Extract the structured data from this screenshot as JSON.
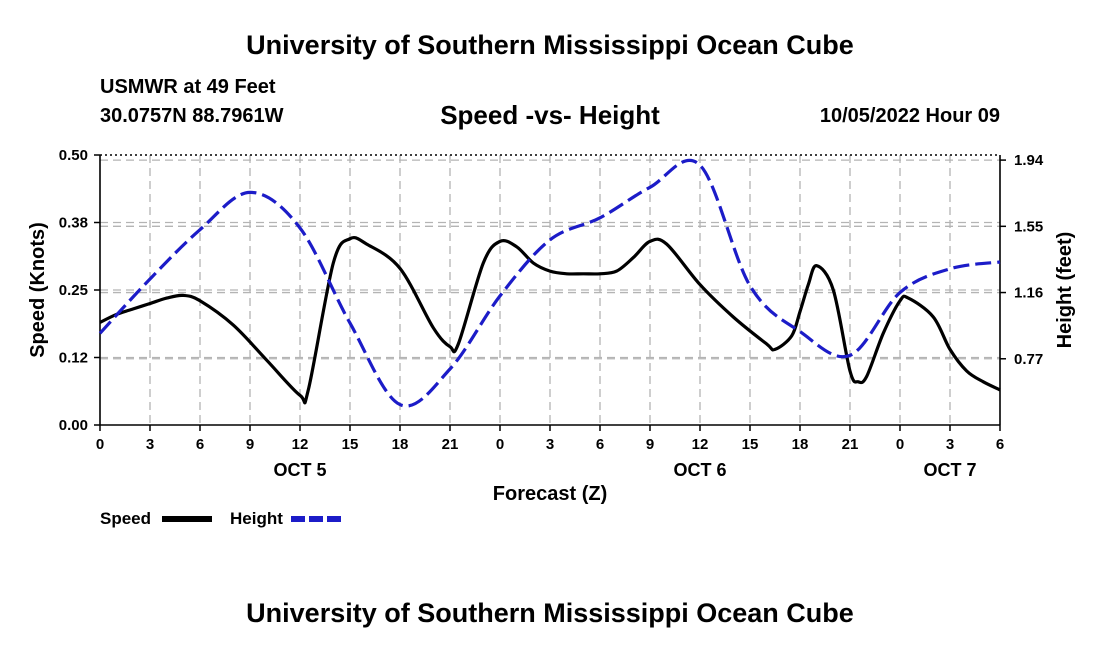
{
  "header": {
    "title": "University of Southern Mississippi Ocean Cube",
    "station": "USMWR at 49 Feet",
    "coords": "30.0757N  88.7961W",
    "subtitle": "Speed -vs- Height",
    "datetime": "10/05/2022 Hour 09"
  },
  "footer": {
    "title": "University of Southern Mississippi Ocean Cube"
  },
  "legend": {
    "speed_label": "Speed",
    "height_label": "Height"
  },
  "colors": {
    "speed": "#000000",
    "height": "#1c1cc8",
    "grid": "#b4b4b4"
  },
  "chart_data": {
    "type": "line",
    "title": "Speed -vs- Height",
    "xlabel": "Forecast (Z)",
    "ylabel_left": "Speed (Knots)",
    "ylabel_right": "Height (feet)",
    "xlim": [
      0,
      54
    ],
    "ylim_left": [
      0,
      0.5
    ],
    "ylim_right": [
      0.38,
      1.97
    ],
    "x_ticks": [
      {
        "x": 0,
        "label": "0"
      },
      {
        "x": 3,
        "label": "3"
      },
      {
        "x": 6,
        "label": "6"
      },
      {
        "x": 9,
        "label": "9"
      },
      {
        "x": 12,
        "label": "12"
      },
      {
        "x": 15,
        "label": "15"
      },
      {
        "x": 18,
        "label": "18"
      },
      {
        "x": 21,
        "label": "21"
      },
      {
        "x": 24,
        "label": "0"
      },
      {
        "x": 27,
        "label": "3"
      },
      {
        "x": 30,
        "label": "6"
      },
      {
        "x": 33,
        "label": "9"
      },
      {
        "x": 36,
        "label": "12"
      },
      {
        "x": 39,
        "label": "15"
      },
      {
        "x": 42,
        "label": "18"
      },
      {
        "x": 45,
        "label": "21"
      },
      {
        "x": 48,
        "label": "0"
      },
      {
        "x": 51,
        "label": "3"
      },
      {
        "x": 54,
        "label": "6"
      }
    ],
    "day_labels": [
      {
        "x": 12,
        "label": "OCT 5"
      },
      {
        "x": 36,
        "label": "OCT 6"
      },
      {
        "x": 51,
        "label": "OCT 7"
      }
    ],
    "y_ticks_left": [
      "0.00",
      "0.12",
      "0.25",
      "0.38",
      "0.50"
    ],
    "y_tick_values_left": [
      0,
      0.125,
      0.25,
      0.375,
      0.5
    ],
    "y_ticks_right": [
      "0.77",
      "1.16",
      "1.55",
      "1.94"
    ],
    "y_tick_values_right": [
      0.77,
      1.16,
      1.55,
      1.94
    ],
    "series": [
      {
        "name": "Speed",
        "axis": "left",
        "x": [
          0,
          1,
          2,
          3,
          4,
          5,
          6,
          8,
          10,
          12,
          12.5,
          14,
          15,
          16,
          18,
          20,
          21,
          21.5,
          23,
          24,
          25,
          26,
          27,
          28,
          29,
          30,
          31,
          32,
          33,
          34,
          36,
          38,
          40,
          40.5,
          41.5,
          42,
          42.5,
          43,
          44,
          45,
          45.5,
          46,
          47,
          48,
          48.5,
          50,
          51,
          52,
          53,
          54
        ],
        "values": [
          0.19,
          0.205,
          0.215,
          0.225,
          0.235,
          0.24,
          0.23,
          0.185,
          0.12,
          0.055,
          0.065,
          0.3,
          0.345,
          0.335,
          0.29,
          0.18,
          0.145,
          0.15,
          0.3,
          0.34,
          0.33,
          0.3,
          0.285,
          0.28,
          0.28,
          0.28,
          0.285,
          0.31,
          0.34,
          0.335,
          0.26,
          0.2,
          0.15,
          0.14,
          0.165,
          0.21,
          0.26,
          0.295,
          0.25,
          0.1,
          0.08,
          0.09,
          0.17,
          0.23,
          0.235,
          0.2,
          0.14,
          0.1,
          0.08,
          0.065
        ]
      },
      {
        "name": "Height",
        "axis": "right",
        "x": [
          0,
          3,
          6,
          9,
          12,
          15,
          18,
          21,
          24,
          27,
          30,
          33,
          36,
          39,
          42,
          45,
          48,
          51,
          54
        ],
        "values": [
          0.92,
          1.24,
          1.53,
          1.75,
          1.54,
          0.98,
          0.5,
          0.71,
          1.14,
          1.47,
          1.6,
          1.78,
          1.91,
          1.2,
          0.93,
          0.79,
          1.16,
          1.3,
          1.34
        ]
      }
    ]
  }
}
